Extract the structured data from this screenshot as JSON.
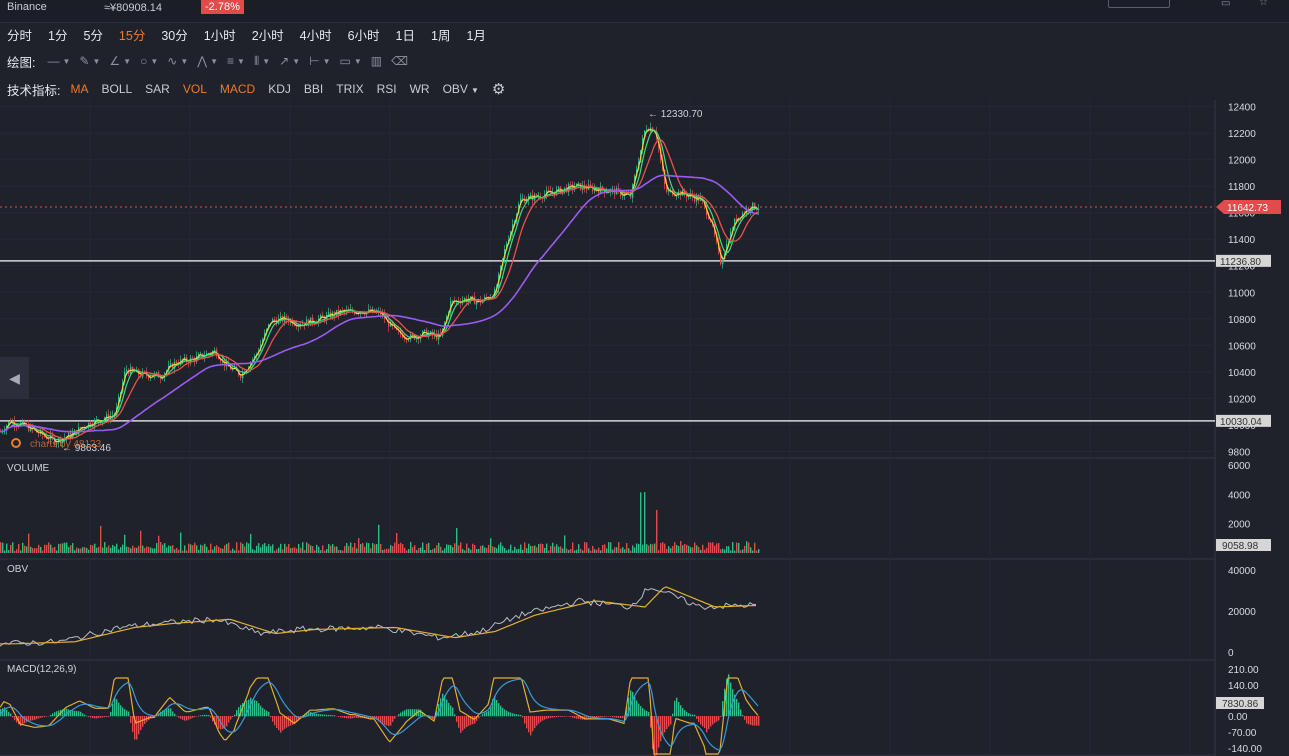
{
  "header": {
    "exchange": "Binance",
    "price_cny": "≈¥80908.14",
    "change": "-2.78%"
  },
  "intervals": [
    {
      "label": "分时",
      "active": false
    },
    {
      "label": "1分",
      "active": false
    },
    {
      "label": "5分",
      "active": false
    },
    {
      "label": "15分",
      "active": true
    },
    {
      "label": "30分",
      "active": false
    },
    {
      "label": "1小时",
      "active": false
    },
    {
      "label": "2小时",
      "active": false
    },
    {
      "label": "4小时",
      "active": false
    },
    {
      "label": "6小时",
      "active": false
    },
    {
      "label": "1日",
      "active": false
    },
    {
      "label": "1周",
      "active": false
    },
    {
      "label": "1月",
      "active": false
    }
  ],
  "drawing": {
    "label": "绘图:",
    "tools": [
      "line-icon",
      "brush-icon",
      "angle-line-icon",
      "circle-icon",
      "wave-icon",
      "pattern-icon",
      "hlines-icon",
      "vlines-icon",
      "arrow-icon",
      "range-icon",
      "comment-icon",
      "bars-icon",
      "trash-icon"
    ]
  },
  "indicators": {
    "label": "技术指标:",
    "items": [
      {
        "label": "MA",
        "active": true
      },
      {
        "label": "BOLL",
        "active": false
      },
      {
        "label": "SAR",
        "active": false
      },
      {
        "label": "VOL",
        "active": true
      },
      {
        "label": "MACD",
        "active": true
      },
      {
        "label": "KDJ",
        "active": false
      },
      {
        "label": "BBI",
        "active": false
      },
      {
        "label": "TRIX",
        "active": false
      },
      {
        "label": "RSI",
        "active": false
      },
      {
        "label": "WR",
        "active": false
      },
      {
        "label": "OBV",
        "active": false,
        "dropdown": true
      }
    ]
  },
  "colors": {
    "bg": "#1f212b",
    "up": "#2ebd85",
    "down": "#e24b4b",
    "accent": "#ef7a2a",
    "ma_short": "#f2d544",
    "ma_mid": "#3ddc84",
    "ma_long": "#e8534a",
    "ma_trend": "#9a5cf0"
  },
  "chart_data": {
    "type": "candlestick",
    "price_axis": {
      "ticks": [
        12400,
        12200,
        12000,
        11800,
        11600,
        11400,
        11200,
        11000,
        10800,
        10600,
        10400,
        10200,
        10000,
        9800
      ],
      "min": 9750,
      "max": 12450
    },
    "current_price": "11642.73",
    "high_marker": "12330.70",
    "low_marker": "9863.46",
    "horizontal_lines": [
      {
        "value": 11236.8,
        "label": "11236.80"
      },
      {
        "value": 10030.04,
        "label": "10030.04"
      }
    ],
    "watermark": "charts by 48123",
    "price_path": [
      [
        0,
        9950
      ],
      [
        10,
        10030
      ],
      [
        25,
        9990
      ],
      [
        40,
        9930
      ],
      [
        55,
        9880
      ],
      [
        70,
        9920
      ],
      [
        85,
        10000
      ],
      [
        100,
        10040
      ],
      [
        115,
        10080
      ],
      [
        125,
        10420
      ],
      [
        140,
        10380
      ],
      [
        160,
        10370
      ],
      [
        175,
        10470
      ],
      [
        195,
        10500
      ],
      [
        215,
        10560
      ],
      [
        225,
        10450
      ],
      [
        240,
        10380
      ],
      [
        255,
        10520
      ],
      [
        270,
        10780
      ],
      [
        285,
        10800
      ],
      [
        300,
        10760
      ],
      [
        320,
        10800
      ],
      [
        340,
        10850
      ],
      [
        360,
        10860
      ],
      [
        380,
        10840
      ],
      [
        395,
        10700
      ],
      [
        410,
        10660
      ],
      [
        425,
        10690
      ],
      [
        440,
        10660
      ],
      [
        450,
        10920
      ],
      [
        465,
        10950
      ],
      [
        480,
        10930
      ],
      [
        495,
        11000
      ],
      [
        505,
        11350
      ],
      [
        520,
        11700
      ],
      [
        535,
        11720
      ],
      [
        555,
        11760
      ],
      [
        575,
        11800
      ],
      [
        595,
        11780
      ],
      [
        615,
        11760
      ],
      [
        630,
        11720
      ],
      [
        645,
        12250
      ],
      [
        655,
        12230
      ],
      [
        665,
        11760
      ],
      [
        680,
        11750
      ],
      [
        700,
        11700
      ],
      [
        710,
        11550
      ],
      [
        720,
        11230
      ],
      [
        735,
        11550
      ],
      [
        750,
        11650
      ],
      [
        758,
        11640
      ]
    ],
    "volume": {
      "label": "VOLUME",
      "ticks": [
        6000,
        4000,
        2000
      ],
      "max": 6200,
      "current": "9058.98"
    },
    "obv": {
      "label": "OBV",
      "ticks": [
        40000,
        20000,
        0
      ],
      "path": [
        [
          0,
          4000
        ],
        [
          60,
          5000
        ],
        [
          120,
          12000
        ],
        [
          160,
          14000
        ],
        [
          215,
          16000
        ],
        [
          260,
          9000
        ],
        [
          300,
          11000
        ],
        [
          380,
          12000
        ],
        [
          440,
          7000
        ],
        [
          480,
          10000
        ],
        [
          520,
          18000
        ],
        [
          580,
          25000
        ],
        [
          630,
          22000
        ],
        [
          650,
          32000
        ],
        [
          700,
          22000
        ],
        [
          758,
          23000
        ]
      ]
    },
    "macd": {
      "label": "MACD(12,26,9)",
      "ticks": [
        "210.00",
        "140.00",
        "0.00",
        "-70.00",
        "-140.00"
      ],
      "current": "7830.86"
    }
  }
}
